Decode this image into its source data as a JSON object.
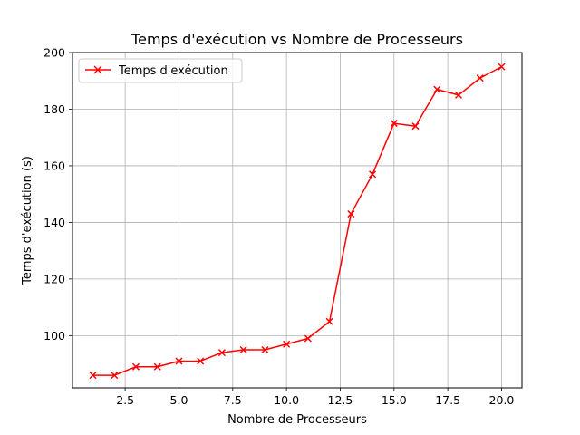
{
  "chart_data": {
    "type": "line",
    "title": "Temps d'exécution vs Nombre de Processeurs",
    "xlabel": "Nombre de Processeurs",
    "ylabel": "Temps d'exécution (s)",
    "xlim": [
      0.05,
      20.95
    ],
    "ylim": [
      81.55,
      200
    ],
    "xticks": [
      2.5,
      5.0,
      7.5,
      10.0,
      12.5,
      15.0,
      17.5,
      20.0
    ],
    "xtick_labels": [
      "2.5",
      "5.0",
      "7.5",
      "10.0",
      "12.5",
      "15.0",
      "17.5",
      "20.0"
    ],
    "yticks": [
      100,
      120,
      140,
      160,
      180,
      200
    ],
    "ytick_labels": [
      "100",
      "120",
      "140",
      "160",
      "180",
      "200"
    ],
    "grid": true,
    "legend_position": "top-left",
    "series": [
      {
        "name": "Temps d'exécution",
        "color": "#ff0000",
        "marker": "x",
        "x": [
          1,
          2,
          3,
          4,
          5,
          6,
          7,
          8,
          9,
          10,
          11,
          12,
          13,
          14,
          15,
          16,
          17,
          18,
          19,
          20
        ],
        "values": [
          86,
          86,
          89,
          89,
          91,
          91,
          94,
          95,
          95,
          97,
          99,
          105,
          143,
          157,
          175,
          174,
          187,
          185,
          191,
          195
        ]
      }
    ]
  }
}
